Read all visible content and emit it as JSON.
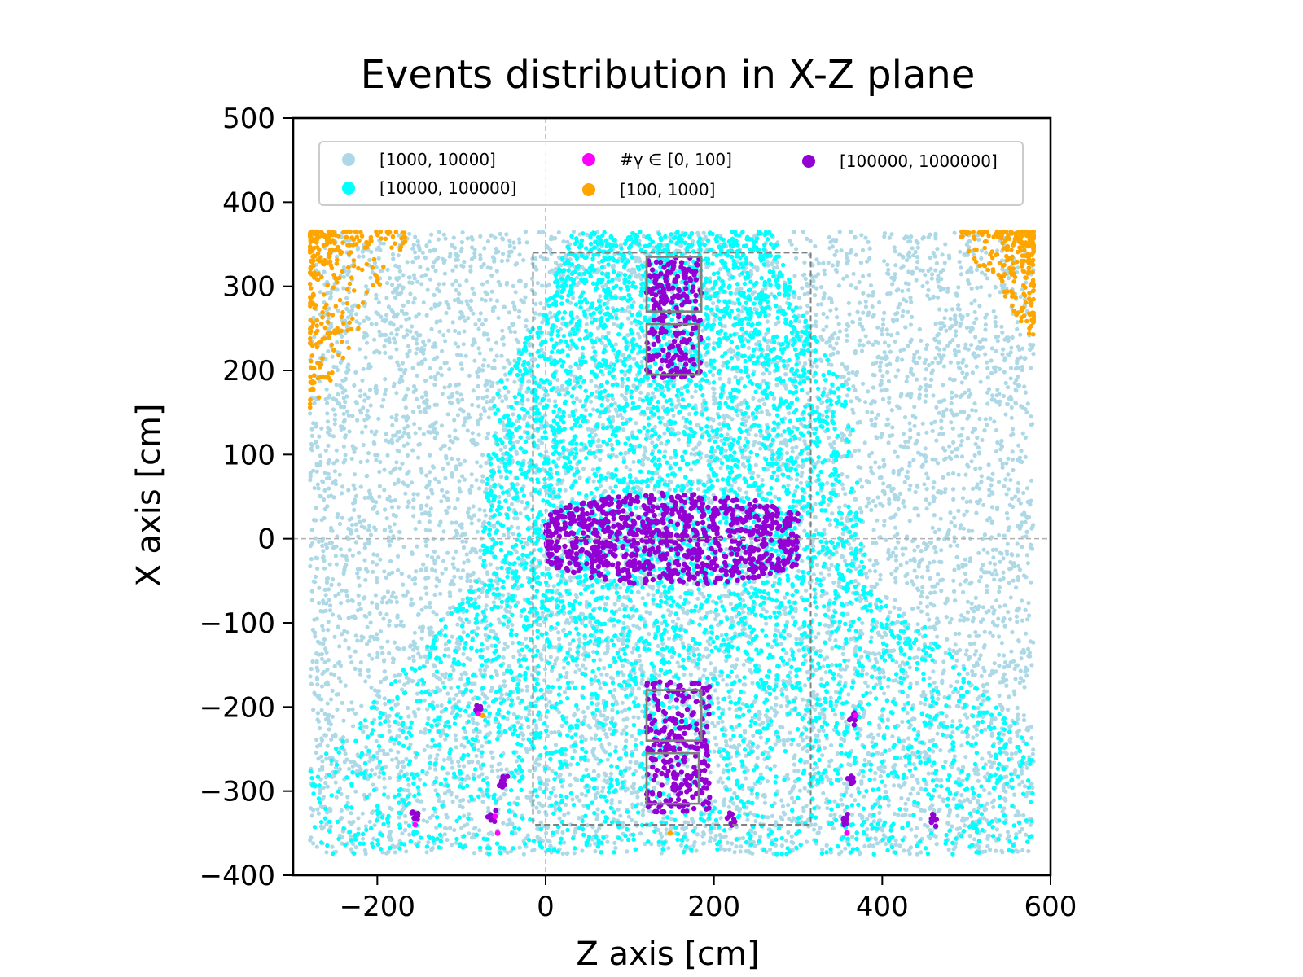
{
  "chart_data": {
    "type": "scatter",
    "title": "Events distribution in X-Z plane",
    "xlabel": "Z axis [cm]",
    "ylabel": "X axis [cm]",
    "xlim": [
      -300,
      600
    ],
    "ylim": [
      -400,
      500
    ],
    "x_ticks": [
      "−200",
      "0",
      "200",
      "400",
      "600"
    ],
    "x_tick_values": [
      -200,
      0,
      200,
      400,
      600
    ],
    "y_ticks": [
      "−400",
      "−300",
      "−200",
      "−100",
      "0",
      "100",
      "200",
      "300",
      "400",
      "500"
    ],
    "y_tick_values": [
      -400,
      -300,
      -200,
      -100,
      0,
      100,
      200,
      300,
      400,
      500
    ],
    "grid": false,
    "reference_lines": {
      "x": 0,
      "y": 0
    },
    "legend_position": "top",
    "series": [
      {
        "name": "[1000, 10000]",
        "color": "#add8e6",
        "regions": [
          {
            "z": [
              -280,
              580
            ],
            "x": [
              -375,
              365
            ],
            "density": "high"
          }
        ]
      },
      {
        "name": "#γ ∈ [0, 100]",
        "color": "#ff00ff",
        "points": [
          [
            -57,
            -350
          ],
          [
            -155,
            -340
          ],
          [
            -80,
            -208
          ],
          [
            368,
            -210
          ],
          [
            358,
            -350
          ],
          [
            -60,
            -330
          ]
        ]
      },
      {
        "name": "[100000, 1000000]",
        "color": "#9400d3",
        "regions": [
          {
            "z": [
              0,
              300
            ],
            "x": [
              -60,
              60
            ],
            "shape": "barrel",
            "density": "high"
          },
          {
            "z": [
              120,
              185
            ],
            "x": [
              190,
              335
            ],
            "density": "medium"
          },
          {
            "z": [
              120,
              195
            ],
            "x": [
              -325,
              -170
            ],
            "density": "medium"
          }
        ],
        "clusters": [
          {
            "z": -155,
            "x": -330
          },
          {
            "z": -65,
            "x": -330
          },
          {
            "z": -80,
            "x": -200
          },
          {
            "z": -50,
            "x": -290
          },
          {
            "z": 220,
            "x": -335
          },
          {
            "z": 365,
            "x": -210
          },
          {
            "z": 365,
            "x": -290
          },
          {
            "z": 355,
            "x": -335
          },
          {
            "z": 460,
            "x": -335
          }
        ]
      },
      {
        "name": "[10000, 100000]",
        "color": "#00ffff",
        "regions": [
          {
            "shape": "bell",
            "x": [
              -375,
              365
            ],
            "density": "high"
          }
        ]
      },
      {
        "name": "[100, 1000]",
        "color": "#ffa500",
        "regions": [
          {
            "z": [
              -280,
              -170
            ],
            "x": [
              150,
              365
            ],
            "corner": "top-left"
          },
          {
            "z": [
              490,
              580
            ],
            "x": [
              240,
              365
            ],
            "corner": "top-right"
          }
        ],
        "points": [
          [
            -75,
            -210
          ],
          [
            148,
            -350
          ]
        ]
      }
    ],
    "overlay_boxes": [
      {
        "z": [
          -15,
          315
        ],
        "x": [
          -340,
          340
        ],
        "style": "dashed",
        "color": "#808080"
      },
      {
        "z": [
          120,
          185
        ],
        "x": [
          270,
          335
        ],
        "style": "solid",
        "color": "#808080"
      },
      {
        "z": [
          120,
          182
        ],
        "x": [
          195,
          255
        ],
        "style": "solid",
        "color": "#808080"
      },
      {
        "z": [
          120,
          185
        ],
        "x": [
          -240,
          -180
        ],
        "style": "solid",
        "color": "#808080"
      },
      {
        "z": [
          120,
          182
        ],
        "x": [
          -315,
          -255
        ],
        "style": "solid",
        "color": "#808080"
      }
    ]
  }
}
